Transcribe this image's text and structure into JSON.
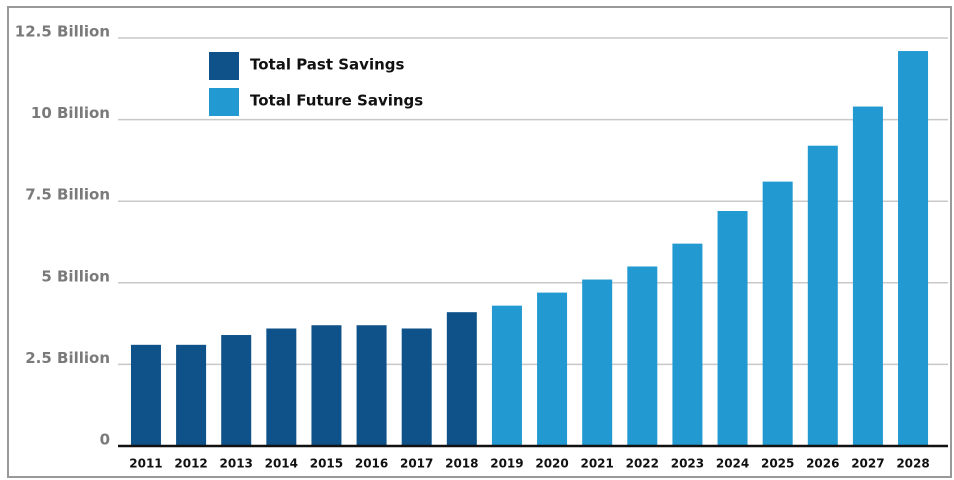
{
  "chart_data": {
    "type": "bar",
    "categories": [
      "2011",
      "2012",
      "2013",
      "2014",
      "2015",
      "2016",
      "2017",
      "2018",
      "2019",
      "2020",
      "2021",
      "2022",
      "2023",
      "2024",
      "2025",
      "2026",
      "2027",
      "2028"
    ],
    "series": [
      {
        "name": "Total Past Savings",
        "color": "#0e5289",
        "values": [
          3.1,
          3.1,
          3.4,
          3.6,
          3.7,
          3.7,
          3.6,
          4.1,
          null,
          null,
          null,
          null,
          null,
          null,
          null,
          null,
          null,
          null
        ]
      },
      {
        "name": "Total Future Savings",
        "color": "#2299d0",
        "values": [
          null,
          null,
          null,
          null,
          null,
          null,
          null,
          null,
          4.3,
          4.7,
          5.1,
          5.5,
          6.2,
          7.2,
          8.1,
          9.2,
          10.4,
          12.1
        ]
      }
    ],
    "ylim": [
      0,
      12.5
    ],
    "yticks": [
      0,
      {
        "value": 2.5,
        "label": "2.5 Billion"
      },
      {
        "value": 5,
        "label": "5 Billion"
      },
      {
        "value": 7.5,
        "label": "7.5 Billion"
      },
      {
        "value": 10,
        "label": "10 Billion"
      },
      {
        "value": 12.5,
        "label": "12.5 Billion"
      }
    ],
    "grid": true,
    "legend": "top-left"
  }
}
